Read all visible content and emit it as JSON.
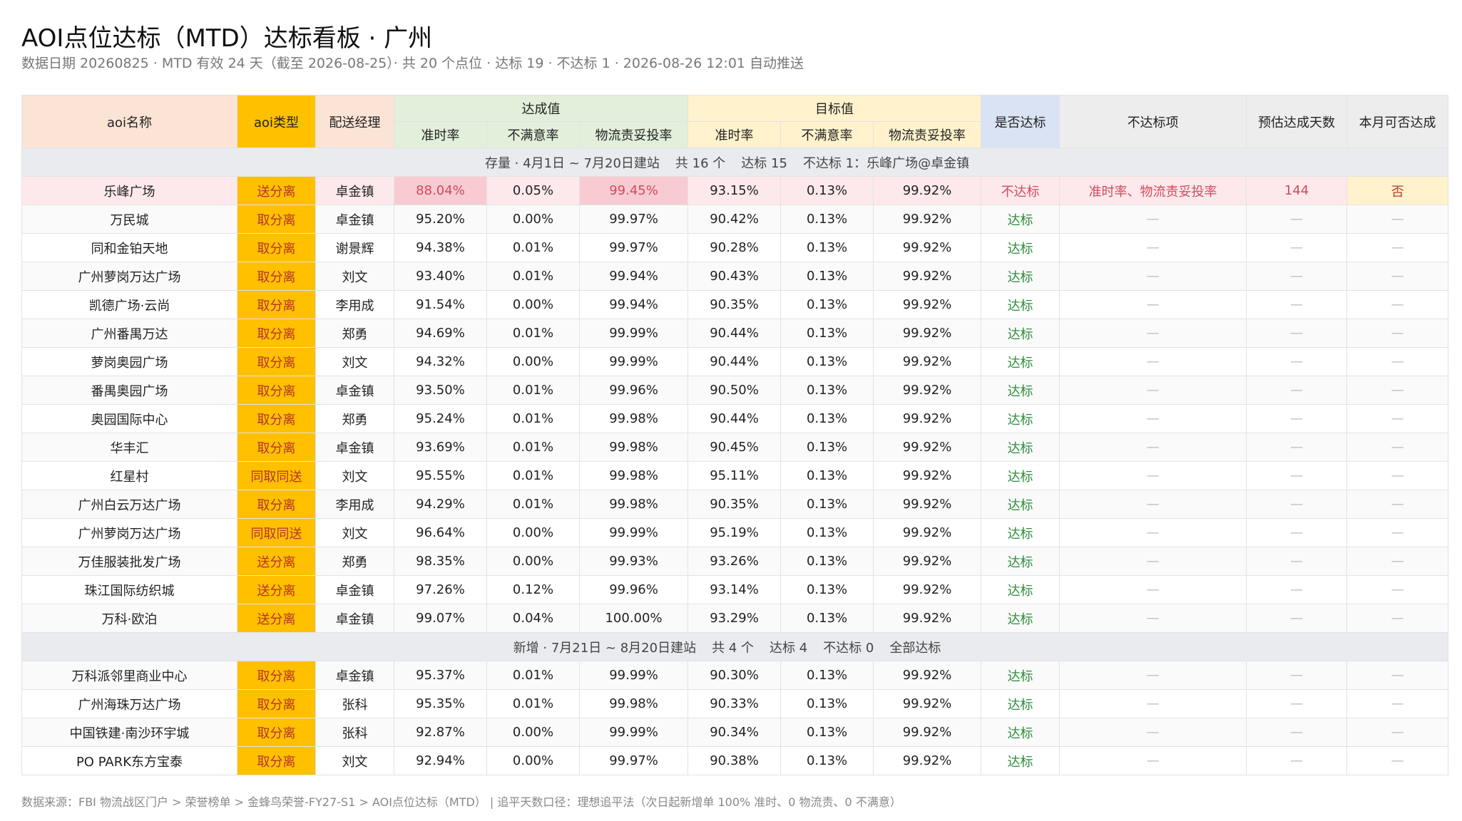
{
  "header": {
    "title": "AOI点位达标（MTD）达标看板 · 广州",
    "subtitle": "数据日期 20260825 · MTD 有效 24 天（截至 2026-08-25）· 共 20 个点位 · 达标 19 · 不达标 1 · 2026-08-26 12:01 自动推送"
  },
  "table": {
    "columns": [
      "aoi名称",
      "aoi类型",
      "配送经理",
      {
        "label": "达成值",
        "sub": [
          "准时率",
          "不满意率",
          "物流责妥投率"
        ]
      },
      {
        "label": "目标值",
        "sub": [
          "准时率",
          "不满意率",
          "物流责妥投率"
        ]
      },
      "是否达标",
      "不达标项",
      "预估达成天数",
      "本月可否达成"
    ],
    "groups": [
      {
        "summary": [
          "存量 · 4月1日 ~ 7月20日建站",
          "共 16 个",
          "达标 15",
          "不达标 1：乐峰广场@卓金镇"
        ],
        "rows": [
          [
            "乐峰广场",
            "送分离",
            "卓金镇",
            "88.04%",
            "0.05%",
            "99.45%",
            "93.15%",
            "0.13%",
            "99.92%",
            "不达标",
            "准时率、物流责妥投率",
            "144",
            "否"
          ],
          [
            "万民城",
            "取分离",
            "卓金镇",
            "95.20%",
            "0.00%",
            "99.97%",
            "90.42%",
            "0.13%",
            "99.92%",
            "达标",
            "—",
            "—",
            "—"
          ],
          [
            "同和金铂天地",
            "取分离",
            "谢景辉",
            "94.38%",
            "0.01%",
            "99.97%",
            "90.28%",
            "0.13%",
            "99.92%",
            "达标",
            "—",
            "—",
            "—"
          ],
          [
            "广州萝岗万达广场",
            "取分离",
            "刘文",
            "93.40%",
            "0.01%",
            "99.94%",
            "90.43%",
            "0.13%",
            "99.92%",
            "达标",
            "—",
            "—",
            "—"
          ],
          [
            "凯德广场·云尚",
            "取分离",
            "李用成",
            "91.54%",
            "0.00%",
            "99.94%",
            "90.35%",
            "0.13%",
            "99.92%",
            "达标",
            "—",
            "—",
            "—"
          ],
          [
            "广州番禺万达",
            "取分离",
            "郑勇",
            "94.69%",
            "0.01%",
            "99.99%",
            "90.44%",
            "0.13%",
            "99.92%",
            "达标",
            "—",
            "—",
            "—"
          ],
          [
            "萝岗奥园广场",
            "取分离",
            "刘文",
            "94.32%",
            "0.00%",
            "99.99%",
            "90.44%",
            "0.13%",
            "99.92%",
            "达标",
            "—",
            "—",
            "—"
          ],
          [
            "番禺奥园广场",
            "取分离",
            "卓金镇",
            "93.50%",
            "0.01%",
            "99.96%",
            "90.50%",
            "0.13%",
            "99.92%",
            "达标",
            "—",
            "—",
            "—"
          ],
          [
            "奥园国际中心",
            "取分离",
            "郑勇",
            "95.24%",
            "0.01%",
            "99.98%",
            "90.44%",
            "0.13%",
            "99.92%",
            "达标",
            "—",
            "—",
            "—"
          ],
          [
            "华丰汇",
            "取分离",
            "卓金镇",
            "93.69%",
            "0.01%",
            "99.98%",
            "90.45%",
            "0.13%",
            "99.92%",
            "达标",
            "—",
            "—",
            "—"
          ],
          [
            "红星村",
            "同取同送",
            "刘文",
            "95.55%",
            "0.01%",
            "99.98%",
            "95.11%",
            "0.13%",
            "99.92%",
            "达标",
            "—",
            "—",
            "—"
          ],
          [
            "广州白云万达广场",
            "取分离",
            "李用成",
            "94.29%",
            "0.01%",
            "99.98%",
            "90.35%",
            "0.13%",
            "99.92%",
            "达标",
            "—",
            "—",
            "—"
          ],
          [
            "广州萝岗万达广场",
            "同取同送",
            "刘文",
            "96.64%",
            "0.00%",
            "99.99%",
            "95.19%",
            "0.13%",
            "99.92%",
            "达标",
            "—",
            "—",
            "—"
          ],
          [
            "万佳服装批发广场",
            "送分离",
            "郑勇",
            "98.35%",
            "0.00%",
            "99.93%",
            "93.26%",
            "0.13%",
            "99.92%",
            "达标",
            "—",
            "—",
            "—"
          ],
          [
            "珠江国际纺织城",
            "送分离",
            "卓金镇",
            "97.26%",
            "0.12%",
            "99.96%",
            "93.14%",
            "0.13%",
            "99.92%",
            "达标",
            "—",
            "—",
            "—"
          ],
          [
            "万科·欧泊",
            "送分离",
            "卓金镇",
            "99.07%",
            "0.04%",
            "100.00%",
            "93.29%",
            "0.13%",
            "99.92%",
            "达标",
            "—",
            "—",
            "—"
          ]
        ]
      },
      {
        "summary": [
          "新增 · 7月21日 ~ 8月20日建站",
          "共 4 个",
          "达标 4",
          "不达标 0",
          "全部达标"
        ],
        "rows": [
          [
            "万科派邻里商业中心",
            "取分离",
            "卓金镇",
            "95.37%",
            "0.01%",
            "99.99%",
            "90.30%",
            "0.13%",
            "99.92%",
            "达标",
            "—",
            "—",
            "—"
          ],
          [
            "广州海珠万达广场",
            "取分离",
            "张科",
            "95.35%",
            "0.01%",
            "99.98%",
            "90.33%",
            "0.13%",
            "99.92%",
            "达标",
            "—",
            "—",
            "—"
          ],
          [
            "中国铁建·南沙环宇城",
            "取分离",
            "张科",
            "92.87%",
            "0.00%",
            "99.99%",
            "90.34%",
            "0.13%",
            "99.92%",
            "达标",
            "—",
            "—",
            "—"
          ],
          [
            "PO PARK东方宝泰",
            "取分离",
            "刘文",
            "92.94%",
            "0.00%",
            "99.97%",
            "90.38%",
            "0.13%",
            "99.92%",
            "达标",
            "—",
            "—",
            "—"
          ]
        ]
      }
    ]
  },
  "footer": "数据来源：FBI 物流战区门户 > 荣誉榜单 > 金蜂鸟荣誉-FY27-S1 > AOI点位达标（MTD） | 追平天数口径：理想追平法（次日起新增单 100% 准时、0 物流责、0 不满意）"
}
